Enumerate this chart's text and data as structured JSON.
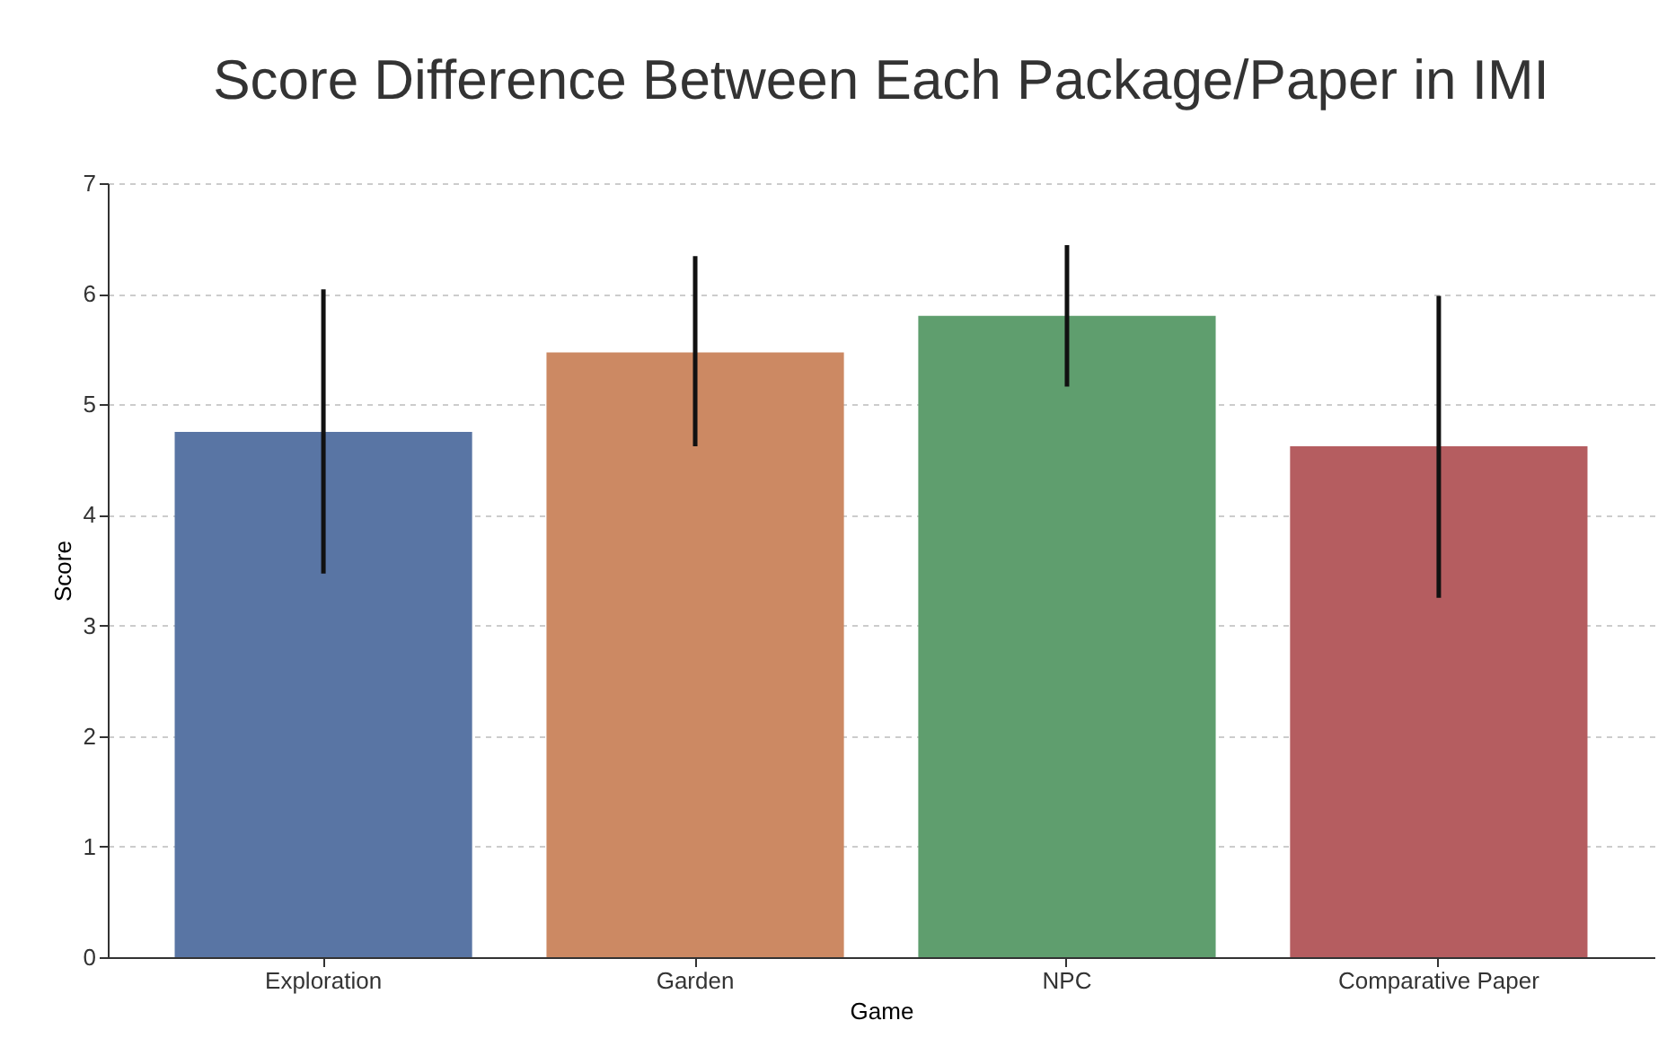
{
  "chart_data": {
    "type": "bar",
    "title": "Score Difference Between Each Package/Paper in IMI",
    "xlabel": "Game",
    "ylabel": "Score",
    "categories": [
      "Exploration",
      "Garden",
      "NPC",
      "Comparative Paper"
    ],
    "values": [
      4.75,
      5.47,
      5.8,
      4.62
    ],
    "colors": [
      "#5975a4",
      "#cc8963",
      "#5f9e6e",
      "#b55d60"
    ],
    "errors": [
      [
        3.47,
        6.04
      ],
      [
        4.62,
        6.34
      ],
      [
        5.16,
        6.44
      ],
      [
        3.25,
        5.98
      ]
    ],
    "ylim": [
      0,
      7
    ],
    "yticks": [
      0,
      1,
      2,
      3,
      4,
      5,
      6,
      7
    ],
    "grid": "y"
  }
}
